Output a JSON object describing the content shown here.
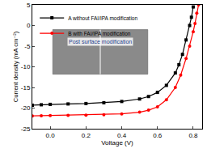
{
  "chart_data": {
    "type": "line",
    "x_label": "Voltage (V)",
    "y_label": "Current density (mA cm⁻²)",
    "annotations": [
      "Post surface modification"
    ],
    "legend": "upper left",
    "grid": false,
    "xlim": [
      -0.1,
      0.85
    ],
    "xticks": [
      {
        "value": 0,
        "label": "0.0"
      },
      {
        "value": 0.2,
        "label": "0.2"
      },
      {
        "value": 0.4,
        "label": "0.4"
      },
      {
        "value": 0.6,
        "label": "0.6"
      },
      {
        "value": 0.8,
        "label": "0.8"
      }
    ],
    "ylim": [
      -25,
      5
    ],
    "yticks": [
      -25,
      -20,
      -15,
      -10,
      -5,
      0,
      5
    ],
    "series": [
      {
        "name": "A without FAI/IPA modification",
        "color": "#000000",
        "marker": "square",
        "x": [
          -0.1,
          -0.05,
          0,
          0.1,
          0.2,
          0.3,
          0.4,
          0.5,
          0.55,
          0.6,
          0.65,
          0.7,
          0.72,
          0.74,
          0.76,
          0.78,
          0.79,
          0.8
        ],
        "values": [
          -19.3,
          -19.2,
          -19.1,
          -19.0,
          -18.9,
          -18.7,
          -18.4,
          -17.8,
          -17.2,
          -16.2,
          -14.5,
          -11.5,
          -9.5,
          -7,
          -3.5,
          0,
          2,
          4.5
        ]
      },
      {
        "name": "B with FAI/IPA modification",
        "color": "#ff0000",
        "marker": "circle",
        "x": [
          -0.1,
          -0.05,
          0,
          0.1,
          0.2,
          0.3,
          0.4,
          0.5,
          0.55,
          0.6,
          0.65,
          0.7,
          0.73,
          0.76,
          0.78,
          0.8,
          0.81,
          0.82,
          0.83
        ],
        "values": [
          -21.9,
          -21.85,
          -21.8,
          -21.75,
          -21.7,
          -21.6,
          -21.4,
          -21.0,
          -20.5,
          -19.7,
          -18.0,
          -15.0,
          -12.0,
          -8.0,
          -5.0,
          -1.5,
          0.5,
          3,
          5
        ]
      }
    ]
  }
}
